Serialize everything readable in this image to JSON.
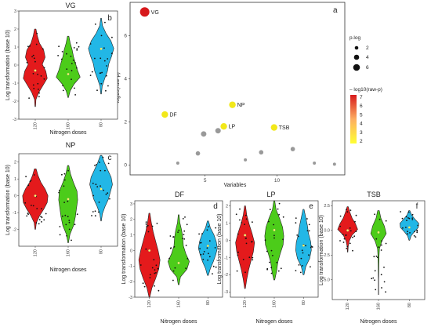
{
  "chart_data": [
    {
      "id": "a",
      "type": "scatter",
      "label": "a",
      "xlabel": "Variables",
      "ylabel": "-log10(raw-p)",
      "xlim": [
        0,
        14.5
      ],
      "ylim": [
        -0.3,
        7.4
      ],
      "xticks": [
        5,
        10
      ],
      "yticks": [
        0,
        2,
        4,
        6
      ],
      "legend_size": {
        "title": "p.log",
        "entries": [
          "2",
          "4",
          "6"
        ]
      },
      "legend_color": {
        "title": "– log10(raw-p)",
        "ticks": [
          "7",
          "6",
          "5",
          "4",
          "3",
          "2"
        ],
        "colors": [
          "#d7191c",
          "#fdae61",
          "#ffff33"
        ]
      },
      "points": [
        {
          "x": 0.8,
          "y": 7.1,
          "label": "VG",
          "color": "#d7191c"
        },
        {
          "x": 2.2,
          "y": 2.35,
          "label": "DF",
          "color": "#f2e81a"
        },
        {
          "x": 6.9,
          "y": 2.8,
          "label": "NP",
          "color": "#f2e81a"
        },
        {
          "x": 6.3,
          "y": 1.8,
          "label": "LP",
          "color": "#f2e81a"
        },
        {
          "x": 9.8,
          "y": 1.75,
          "label": "TSB",
          "color": "#f2e81a"
        },
        {
          "x": 4.9,
          "y": 1.45,
          "label": "",
          "color": "#999999"
        },
        {
          "x": 5.9,
          "y": 1.6,
          "label": "",
          "color": "#999999"
        },
        {
          "x": 4.5,
          "y": 0.55,
          "label": "",
          "color": "#999999"
        },
        {
          "x": 3.1,
          "y": 0.1,
          "label": "",
          "color": "#999999"
        },
        {
          "x": 7.8,
          "y": 0.25,
          "label": "",
          "color": "#999999"
        },
        {
          "x": 8.9,
          "y": 0.6,
          "label": "",
          "color": "#999999"
        },
        {
          "x": 11.1,
          "y": 0.75,
          "label": "",
          "color": "#999999"
        },
        {
          "x": 12.6,
          "y": 0.1,
          "label": "",
          "color": "#999999"
        },
        {
          "x": 14.0,
          "y": 0.05,
          "label": "",
          "color": "#999999"
        }
      ]
    },
    {
      "id": "b",
      "type": "violin",
      "title": "VG",
      "label": "b",
      "xlabel": "Nitrogen doses",
      "ylabel": "Log transformation (base 10)",
      "categories": [
        "120",
        "160",
        "80"
      ],
      "colors": [
        "#e41a1c",
        "#4ccc1a",
        "#22b7e6"
      ],
      "ylim": [
        -3,
        3
      ],
      "yticks": [
        "-3",
        "-2",
        "-1",
        "0",
        "1",
        "2",
        "3"
      ],
      "medians": [
        -0.3,
        -0.5,
        0.9
      ]
    },
    {
      "id": "c",
      "type": "violin",
      "title": "NP",
      "label": "c",
      "xlabel": "Nitrogen doses",
      "ylabel": "Log transformation (base 10)",
      "categories": [
        "120",
        "160",
        "80"
      ],
      "colors": [
        "#e41a1c",
        "#4ccc1a",
        "#22b7e6"
      ],
      "ylim": [
        -3,
        2.5
      ],
      "yticks": [
        "-2",
        "-1",
        "0",
        "1",
        "2"
      ],
      "medians": [
        0.0,
        -0.2,
        0.4
      ]
    },
    {
      "id": "d",
      "type": "violin",
      "title": "DF",
      "label": "d",
      "xlabel": "Nitrogen doses",
      "ylabel": "Log transformation (base 10)",
      "categories": [
        "120",
        "160",
        "80"
      ],
      "colors": [
        "#e41a1c",
        "#4ccc1a",
        "#22b7e6"
      ],
      "ylim": [
        -3,
        3.2
      ],
      "yticks": [
        "-3",
        "-2",
        "-1",
        "0",
        "1",
        "2",
        "3"
      ],
      "medians": [
        0.0,
        -0.8,
        0.3
      ]
    },
    {
      "id": "e",
      "type": "violin",
      "title": "LP",
      "label": "e",
      "xlabel": "Nitrogen doses",
      "ylabel": "Log transformation (base 10)",
      "categories": [
        "120",
        "160",
        "80"
      ],
      "colors": [
        "#e41a1c",
        "#4ccc1a",
        "#22b7e6"
      ],
      "ylim": [
        -3.3,
        2.3
      ],
      "yticks": [
        "-3",
        "-2",
        "-1",
        "0",
        "1",
        "2"
      ],
      "medians": [
        0.3,
        0.6,
        -0.3
      ]
    },
    {
      "id": "f",
      "type": "violin",
      "title": "TSB",
      "label": "f",
      "xlabel": "Nitrogen doses",
      "ylabel": "Log transformation (base 10)",
      "categories": [
        "120",
        "160",
        "80"
      ],
      "colors": [
        "#e41a1c",
        "#4ccc1a",
        "#22b7e6"
      ],
      "ylim": [
        -7,
        3
      ],
      "yticks": [
        "-5.0",
        "-2.5",
        "0.0",
        "2.5"
      ],
      "medians": [
        0.0,
        -0.2,
        0.3
      ]
    }
  ]
}
